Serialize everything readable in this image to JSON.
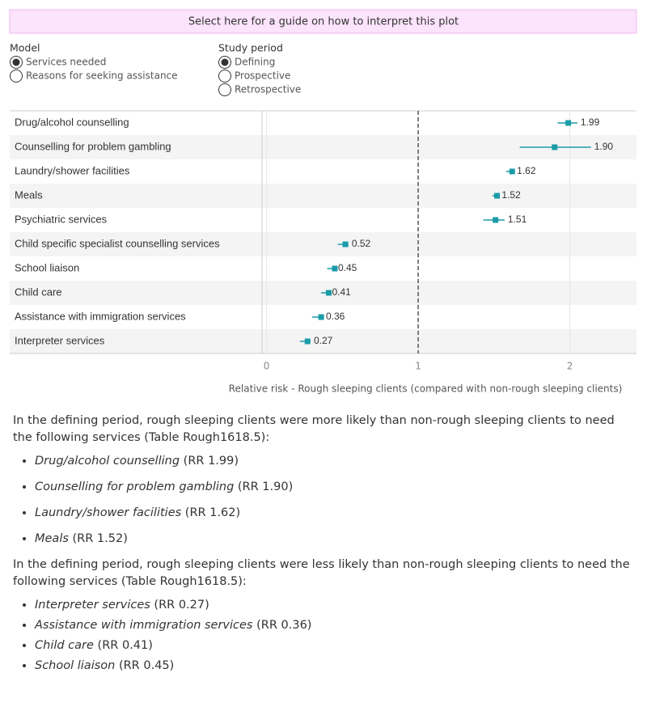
{
  "guide_button": "Select here for a guide on how to interpret this plot",
  "controls": [
    {
      "label": "Model",
      "options": [
        "Services needed",
        "Reasons for seeking assistance"
      ],
      "selected": 0
    },
    {
      "label": "Study period",
      "options": [
        "Defining",
        "Prospective",
        "Retrospective"
      ],
      "selected": 0
    }
  ],
  "chart_data": {
    "type": "forest",
    "categories": [
      "Drug/alcohol counselling",
      "Counselling for problem gambling",
      "Laundry/shower facilities",
      "Meals",
      "Psychiatric services",
      "Child specific specialist counselling services",
      "School liaison",
      "Child care",
      "Assistance with immigration services",
      "Interpreter services"
    ],
    "values": [
      1.99,
      1.9,
      1.62,
      1.52,
      1.51,
      0.52,
      0.45,
      0.41,
      0.36,
      0.27
    ],
    "value_labels": [
      "1.99",
      "1.90",
      "1.62",
      "1.52",
      "1.51",
      "0.52",
      "0.45",
      "0.41",
      "0.36",
      "0.27"
    ],
    "ci_low": [
      1.92,
      1.67,
      1.58,
      1.49,
      1.43,
      0.47,
      0.4,
      0.36,
      0.3,
      0.22
    ],
    "ci_high": [
      2.05,
      2.14,
      1.63,
      1.53,
      1.57,
      0.54,
      0.45,
      0.41,
      0.37,
      0.29
    ],
    "color": "#1a9ba8",
    "xlim": [
      -0.03,
      2.44
    ],
    "xticks": [
      0,
      1,
      2
    ],
    "reference": 1,
    "grid": true,
    "xlabel": "Relative risk - Rough sleeping clients (compared with non-rough sleeping clients)"
  },
  "summary": [
    {
      "intro": "In the defining period, rough sleeping clients were more likely than non-rough sleeping clients to need the following services  (Table Rough1618.5):",
      "items": [
        {
          "service": "Drug/alcohol counselling",
          "rr": "(RR 1.99)"
        },
        {
          "service": "Counselling for problem gambling",
          "rr": "(RR 1.90)"
        },
        {
          "service": "Laundry/shower facilities",
          "rr": "(RR 1.62)"
        },
        {
          "service": "Meals",
          "rr": "(RR 1.52)"
        }
      ]
    },
    {
      "intro": "In the defining period, rough sleeping clients were less likely than non-rough sleeping clients to need the following services (Table Rough1618.5):",
      "items": [
        {
          "service": "Interpreter services",
          "rr": "(RR 0.27)"
        },
        {
          "service": "Assistance with immigration services",
          "rr": "(RR 0.36)"
        },
        {
          "service": "Child care",
          "rr": "(RR 0.41)"
        },
        {
          "service": "School liaison",
          "rr": "(RR 0.45)"
        }
      ]
    }
  ]
}
